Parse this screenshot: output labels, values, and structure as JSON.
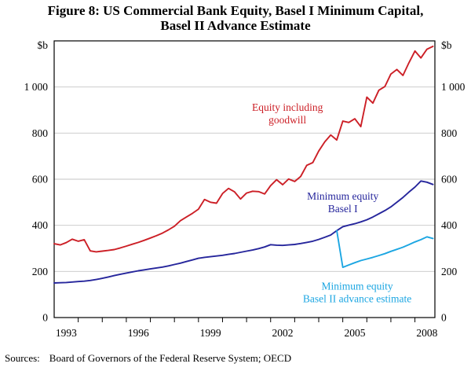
{
  "title": {
    "line1": "Figure 8: US Commercial Bank Equity, Basel I Minimum Capital,",
    "line2": "Basel II Advance Estimate"
  },
  "sources": {
    "label": "Sources:",
    "text": "Board of Governors of the Federal Reserve System; OECD"
  },
  "chart_data": {
    "type": "line",
    "unit_label": "$b",
    "x_range": [
      1992.5,
      2008.33
    ],
    "y_range": [
      0,
      1200
    ],
    "grid_values": [
      200,
      400,
      600,
      800,
      1000
    ],
    "y_ticks": [
      {
        "v": 0,
        "label": "0"
      },
      {
        "v": 200,
        "label": "200"
      },
      {
        "v": 400,
        "label": "400"
      },
      {
        "v": 600,
        "label": "600"
      },
      {
        "v": 800,
        "label": "800"
      },
      {
        "v": 1000,
        "label": "1 000"
      }
    ],
    "x_ticks": [
      {
        "v": 1993,
        "label": "1993"
      },
      {
        "v": 1996,
        "label": "1996"
      },
      {
        "v": 1999,
        "label": "1999"
      },
      {
        "v": 2002,
        "label": "2002"
      },
      {
        "v": 2005,
        "label": "2005"
      },
      {
        "v": 2008,
        "label": "2008"
      }
    ],
    "colors": {
      "equity": "#cc1f26",
      "basel1": "#26269c",
      "basel2": "#1ca6e2",
      "grid": "#c6c6c6",
      "frame": "#000000"
    },
    "series": [
      {
        "name": "Equity including goodwill",
        "color": "#cc1f26",
        "points": [
          [
            1992.5,
            320
          ],
          [
            1992.75,
            315
          ],
          [
            1993,
            325
          ],
          [
            1993.25,
            340
          ],
          [
            1993.5,
            331
          ],
          [
            1993.75,
            338
          ],
          [
            1994,
            289
          ],
          [
            1994.25,
            285
          ],
          [
            1994.5,
            288
          ],
          [
            1994.75,
            291
          ],
          [
            1995,
            295
          ],
          [
            1995.25,
            302
          ],
          [
            1995.5,
            310
          ],
          [
            1995.75,
            318
          ],
          [
            1996,
            326
          ],
          [
            1996.25,
            335
          ],
          [
            1996.5,
            345
          ],
          [
            1996.75,
            355
          ],
          [
            1997,
            366
          ],
          [
            1997.25,
            380
          ],
          [
            1997.5,
            396
          ],
          [
            1997.75,
            420
          ],
          [
            1998,
            436
          ],
          [
            1998.25,
            452
          ],
          [
            1998.5,
            470
          ],
          [
            1998.75,
            512
          ],
          [
            1999,
            500
          ],
          [
            1999.25,
            496
          ],
          [
            1999.5,
            538
          ],
          [
            1999.75,
            560
          ],
          [
            2000,
            545
          ],
          [
            2000.25,
            514
          ],
          [
            2000.5,
            540
          ],
          [
            2000.75,
            548
          ],
          [
            2001,
            546
          ],
          [
            2001.25,
            536
          ],
          [
            2001.5,
            572
          ],
          [
            2001.75,
            598
          ],
          [
            2002,
            576
          ],
          [
            2002.25,
            601
          ],
          [
            2002.5,
            590
          ],
          [
            2002.75,
            612
          ],
          [
            2003,
            660
          ],
          [
            2003.25,
            672
          ],
          [
            2003.5,
            722
          ],
          [
            2003.75,
            762
          ],
          [
            2004,
            792
          ],
          [
            2004.25,
            770
          ],
          [
            2004.5,
            852
          ],
          [
            2004.75,
            846
          ],
          [
            2005,
            862
          ],
          [
            2005.25,
            828
          ],
          [
            2005.5,
            956
          ],
          [
            2005.75,
            930
          ],
          [
            2006,
            986
          ],
          [
            2006.25,
            1002
          ],
          [
            2006.5,
            1056
          ],
          [
            2006.75,
            1076
          ],
          [
            2007,
            1050
          ],
          [
            2007.25,
            1105
          ],
          [
            2007.5,
            1156
          ],
          [
            2007.75,
            1126
          ],
          [
            2008,
            1164
          ],
          [
            2008.25,
            1176
          ]
        ]
      },
      {
        "name": "Minimum equity Basel I",
        "color": "#26269c",
        "points": [
          [
            1992.5,
            150
          ],
          [
            1992.75,
            151
          ],
          [
            1993,
            152
          ],
          [
            1993.25,
            154
          ],
          [
            1993.5,
            156
          ],
          [
            1993.75,
            158
          ],
          [
            1994,
            161
          ],
          [
            1994.25,
            165
          ],
          [
            1994.5,
            170
          ],
          [
            1994.75,
            176
          ],
          [
            1995,
            182
          ],
          [
            1995.25,
            188
          ],
          [
            1995.5,
            193
          ],
          [
            1995.75,
            198
          ],
          [
            1996,
            203
          ],
          [
            1996.25,
            207
          ],
          [
            1996.5,
            211
          ],
          [
            1996.75,
            215
          ],
          [
            1997,
            219
          ],
          [
            1997.25,
            224
          ],
          [
            1997.5,
            230
          ],
          [
            1997.75,
            236
          ],
          [
            1998,
            243
          ],
          [
            1998.25,
            250
          ],
          [
            1998.5,
            257
          ],
          [
            1998.75,
            261
          ],
          [
            1999,
            264
          ],
          [
            1999.25,
            267
          ],
          [
            1999.5,
            270
          ],
          [
            1999.75,
            274
          ],
          [
            2000,
            278
          ],
          [
            2000.25,
            283
          ],
          [
            2000.5,
            288
          ],
          [
            2000.75,
            293
          ],
          [
            2001,
            299
          ],
          [
            2001.25,
            306
          ],
          [
            2001.5,
            316
          ],
          [
            2001.75,
            314
          ],
          [
            2002,
            313
          ],
          [
            2002.25,
            315
          ],
          [
            2002.5,
            317
          ],
          [
            2002.75,
            321
          ],
          [
            2003,
            326
          ],
          [
            2003.25,
            331
          ],
          [
            2003.5,
            339
          ],
          [
            2003.75,
            348
          ],
          [
            2004,
            358
          ],
          [
            2004.25,
            377
          ],
          [
            2004.5,
            394
          ],
          [
            2004.75,
            401
          ],
          [
            2005,
            407
          ],
          [
            2005.25,
            415
          ],
          [
            2005.5,
            424
          ],
          [
            2005.75,
            436
          ],
          [
            2006,
            450
          ],
          [
            2006.25,
            464
          ],
          [
            2006.5,
            480
          ],
          [
            2006.75,
            500
          ],
          [
            2007,
            521
          ],
          [
            2007.25,
            544
          ],
          [
            2007.5,
            566
          ],
          [
            2007.75,
            592
          ],
          [
            2008,
            587
          ],
          [
            2008.25,
            577
          ]
        ]
      },
      {
        "name": "Minimum equity Basel II advance estimate",
        "color": "#1ca6e2",
        "points": [
          [
            2004.25,
            377
          ],
          [
            2004.5,
            218
          ],
          [
            2004.75,
            228
          ],
          [
            2005,
            238
          ],
          [
            2005.25,
            247
          ],
          [
            2005.5,
            254
          ],
          [
            2005.75,
            261
          ],
          [
            2006,
            269
          ],
          [
            2006.25,
            277
          ],
          [
            2006.5,
            287
          ],
          [
            2006.75,
            296
          ],
          [
            2007,
            305
          ],
          [
            2007.25,
            316
          ],
          [
            2007.5,
            328
          ],
          [
            2007.75,
            338
          ],
          [
            2008,
            350
          ],
          [
            2008.25,
            343
          ]
        ]
      }
    ],
    "annotations": [
      {
        "lines": [
          "Equity including",
          "goodwill"
        ],
        "color": "#cc1f26",
        "x": 2002.2,
        "y": 890
      },
      {
        "lines": [
          "Minimum equity",
          "Basel I"
        ],
        "color": "#26269c",
        "x": 2004.5,
        "y": 505
      },
      {
        "lines": [
          "Minimum equity",
          "Basel II advance estimate"
        ],
        "color": "#1ca6e2",
        "x": 2005.1,
        "y": 115
      }
    ]
  }
}
